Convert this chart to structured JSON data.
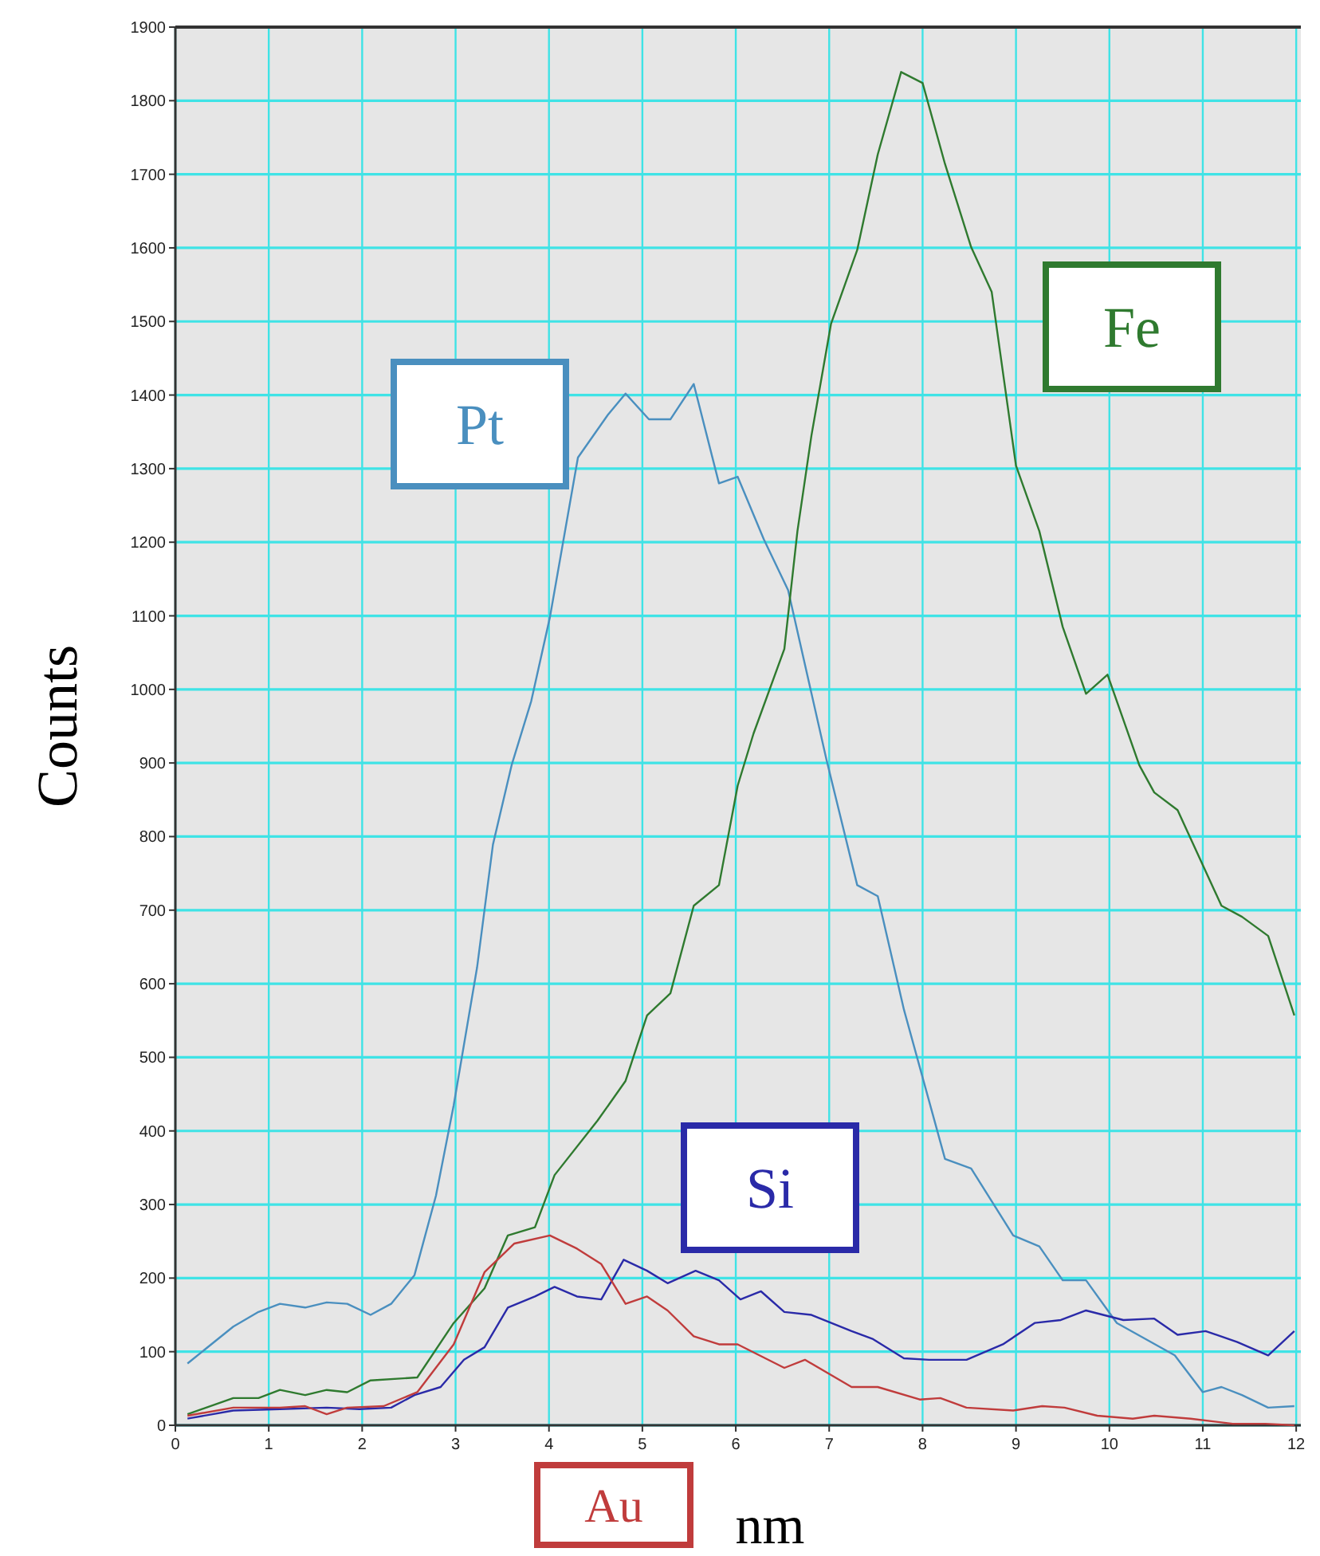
{
  "chart_data": {
    "type": "line",
    "xlabel": "nm",
    "ylabel": "Counts",
    "xlim": [
      0,
      12.05
    ],
    "xticks": [
      0,
      1,
      2,
      3,
      4,
      5,
      6,
      7,
      8,
      9,
      10,
      11,
      12
    ],
    "ylim": [
      0,
      1900
    ],
    "yticks": [
      0,
      100,
      200,
      300,
      400,
      500,
      600,
      700,
      800,
      900,
      1000,
      1100,
      1200,
      1300,
      1400,
      1500,
      1600,
      1700,
      1800,
      1900
    ],
    "grid": true,
    "marker": "none",
    "line_style": "solid",
    "series": [
      {
        "name": "Pt",
        "color": "#4a8fbf",
        "x": [
          0.13,
          0.62,
          0.89,
          1.12,
          1.39,
          1.62,
          1.84,
          2.09,
          2.31,
          2.56,
          2.79,
          2.98,
          3.23,
          3.4,
          3.6,
          3.81,
          4.01,
          4.31,
          4.63,
          4.82,
          5.07,
          5.3,
          5.55,
          5.82,
          6.02,
          6.3,
          6.56,
          6.97,
          7.3,
          7.52,
          7.8,
          8.24,
          8.52,
          8.97,
          9.25,
          9.5,
          9.75,
          10.08,
          10.7,
          11.0,
          11.2,
          11.42,
          11.7,
          11.98
        ],
        "values": [
          84,
          134,
          154,
          165,
          160,
          167,
          165,
          150,
          165,
          204,
          312,
          435,
          622,
          789,
          897,
          984,
          1098,
          1315,
          1373,
          1402,
          1367,
          1367,
          1415,
          1280,
          1289,
          1204,
          1135,
          905,
          734,
          719,
          565,
          362,
          349,
          258,
          243,
          197,
          197,
          139,
          95,
          45,
          52,
          41,
          24,
          26
        ]
      },
      {
        "name": "Fe",
        "color": "#2f7a2f",
        "x": [
          0.13,
          0.62,
          0.89,
          1.12,
          1.39,
          1.62,
          1.84,
          2.09,
          2.59,
          2.98,
          3.31,
          3.56,
          3.85,
          4.06,
          4.52,
          4.82,
          5.05,
          5.3,
          5.55,
          5.82,
          6.02,
          6.19,
          6.52,
          6.66,
          6.81,
          7.02,
          7.3,
          7.52,
          7.77,
          8.0,
          8.24,
          8.52,
          8.74,
          9.0,
          9.25,
          9.5,
          9.75,
          9.98,
          10.32,
          10.48,
          10.73,
          11.2,
          11.42,
          11.7,
          11.98
        ],
        "values": [
          15,
          37,
          37,
          48,
          41,
          48,
          45,
          61,
          65,
          139,
          186,
          258,
          269,
          340,
          414,
          468,
          557,
          587,
          706,
          734,
          869,
          940,
          1055,
          1215,
          1345,
          1497,
          1597,
          1727,
          1839,
          1824,
          1714,
          1601,
          1540,
          1304,
          1215,
          1085,
          994,
          1020,
          897,
          860,
          836,
          706,
          691,
          665,
          557
        ]
      },
      {
        "name": "Si",
        "color": "#2a2aa8",
        "x": [
          0.13,
          0.62,
          1.12,
          1.62,
          1.97,
          2.31,
          2.56,
          2.84,
          3.09,
          3.31,
          3.56,
          3.85,
          4.06,
          4.3,
          4.56,
          4.8,
          5.05,
          5.27,
          5.57,
          5.82,
          6.05,
          6.27,
          6.52,
          6.81,
          7.24,
          7.47,
          7.8,
          8.07,
          8.47,
          8.86,
          9.2,
          9.48,
          9.75,
          10.15,
          10.48,
          10.73,
          11.03,
          11.37,
          11.7,
          11.98
        ],
        "values": [
          9,
          20,
          22,
          24,
          22,
          24,
          41,
          52,
          89,
          106,
          160,
          175,
          188,
          175,
          171,
          225,
          210,
          193,
          210,
          197,
          171,
          182,
          154,
          150,
          128,
          117,
          91,
          89,
          89,
          110,
          139,
          143,
          156,
          143,
          145,
          123,
          128,
          113,
          95,
          128
        ]
      },
      {
        "name": "Au",
        "color": "#c03c3c",
        "x": [
          0.13,
          0.62,
          1.12,
          1.39,
          1.62,
          1.84,
          2.23,
          2.59,
          2.98,
          3.31,
          3.63,
          4.01,
          4.3,
          4.56,
          4.82,
          5.05,
          5.27,
          5.55,
          5.82,
          6.02,
          6.52,
          6.74,
          7.24,
          7.52,
          7.97,
          8.19,
          8.47,
          8.97,
          9.28,
          9.52,
          9.87,
          10.25,
          10.48,
          10.87,
          11.32,
          11.67,
          11.98
        ],
        "values": [
          13,
          24,
          24,
          26,
          15,
          24,
          26,
          45,
          110,
          208,
          247,
          258,
          240,
          219,
          165,
          175,
          156,
          121,
          110,
          110,
          78,
          89,
          52,
          52,
          35,
          37,
          24,
          20,
          26,
          24,
          13,
          9,
          13,
          9,
          2,
          2,
          0
        ]
      }
    ]
  }
}
